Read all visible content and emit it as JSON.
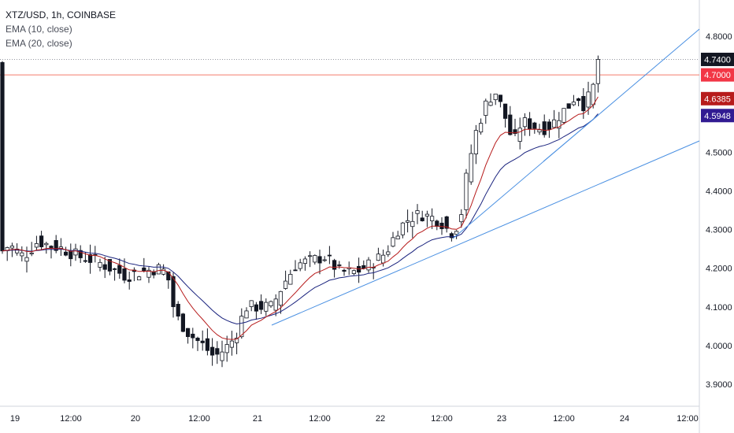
{
  "legend": {
    "title": "XTZ/USD, 1h, COINBASE",
    "indicators": [
      "EMA (10, close)",
      "EMA (20, close)"
    ]
  },
  "chart_data": {
    "type": "candlestick",
    "x_ticks": [
      "19",
      "12:00",
      "20",
      "12:00",
      "21",
      "12:00",
      "22",
      "12:00",
      "23",
      "12:00",
      "24",
      "12:00"
    ],
    "y_ticks": [
      "4.8000",
      "4.7000",
      "4.6000",
      "4.5000",
      "4.4000",
      "4.3000",
      "4.2000",
      "4.1000",
      "4.0000",
      "3.9000"
    ],
    "ylim": [
      3.84,
      4.88
    ],
    "price_labels": [
      {
        "text": "4.7400",
        "value": 4.74,
        "bg": "#131722"
      },
      {
        "text": "4.7000",
        "value": 4.7,
        "bg": "#f23645"
      },
      {
        "text": "4.6385",
        "value": 4.6385,
        "bg": "#b71c1c"
      },
      {
        "text": "4.5948",
        "value": 4.5948,
        "bg": "#311b92"
      }
    ],
    "colors": {
      "ema10": "#b71c1c",
      "ema20": "#1a237e",
      "trendline": "#4a90e2",
      "hline": "#f57c6c"
    }
  }
}
